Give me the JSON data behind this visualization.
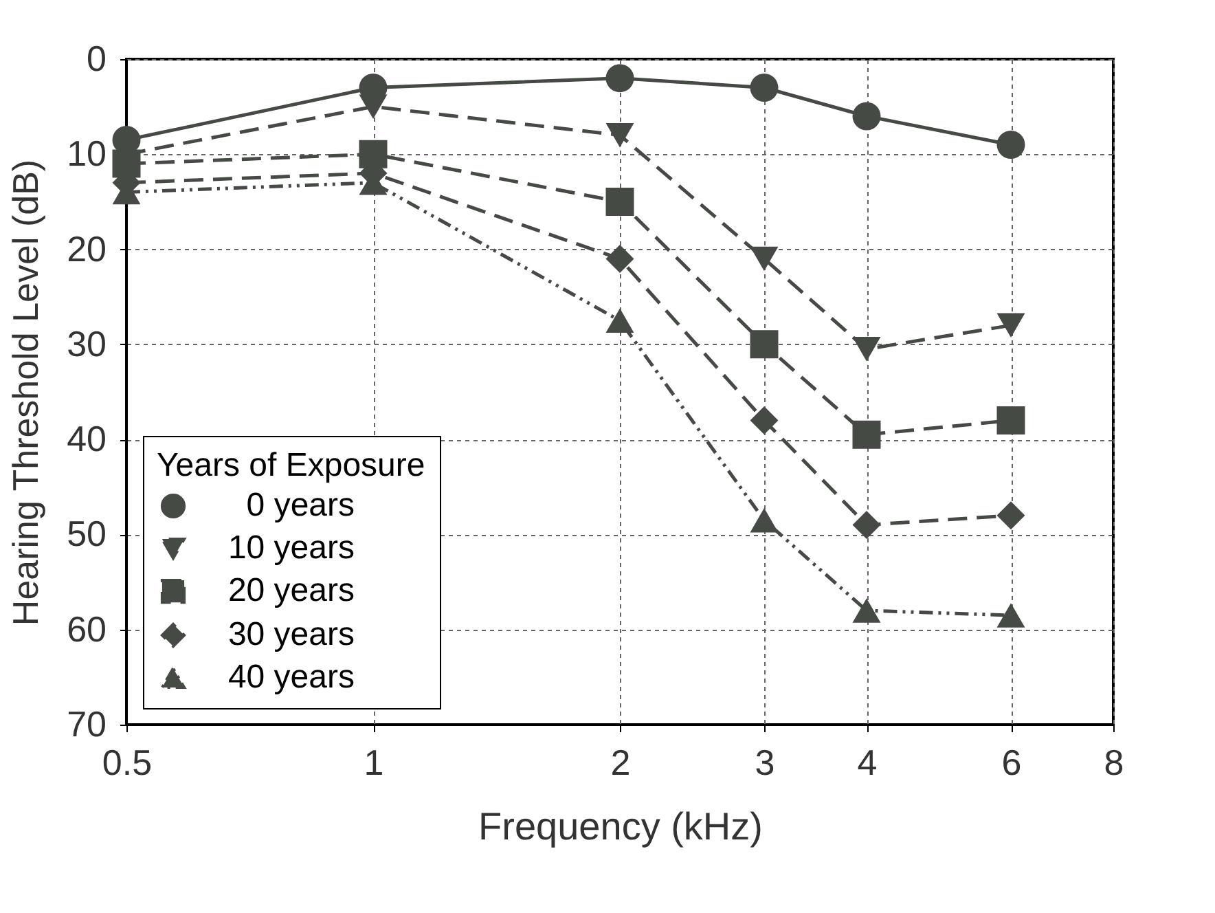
{
  "chart_data": {
    "type": "line",
    "xlabel": "Frequency (kHz)",
    "ylabel": "Hearing Threshold Level (dB)",
    "legend_title": "Years of Exposure",
    "log": "x",
    "x": [
      0.5,
      1,
      2,
      3,
      4,
      6
    ],
    "xlim": [
      0.5,
      8
    ],
    "xticks": [
      0.5,
      1,
      2,
      3,
      4,
      6,
      8
    ],
    "ylim": [
      70,
      0
    ],
    "yticks": [
      0,
      10,
      20,
      30,
      40,
      50,
      60,
      70
    ],
    "grid": true,
    "legend": "bottom left",
    "series": [
      {
        "name": "0 years",
        "color": "#454a45",
        "marker": "circle",
        "line_style": "solid",
        "values": [
          8.5,
          3,
          2,
          3,
          6,
          9
        ]
      },
      {
        "name": "10 years",
        "color": "#454a45",
        "marker": "triangle-down",
        "line_style": "dashed",
        "values": [
          10,
          5,
          8,
          21,
          30.5,
          28
        ]
      },
      {
        "name": "20 years",
        "color": "#454a45",
        "marker": "square",
        "line_style": "dashed",
        "values": [
          11,
          10,
          15,
          30,
          39.5,
          38
        ]
      },
      {
        "name": "30 years",
        "color": "#454a45",
        "marker": "diamond",
        "line_style": "dashed",
        "values": [
          13,
          12,
          21,
          38,
          49,
          48
        ]
      },
      {
        "name": "40 years",
        "color": "#454a45",
        "marker": "triangle",
        "line_style": "dotted",
        "values": [
          14,
          13,
          27.5,
          48.5,
          58,
          58.5
        ]
      }
    ]
  }
}
